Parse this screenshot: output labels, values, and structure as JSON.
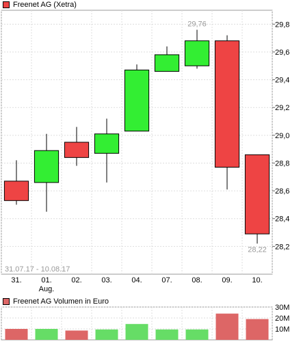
{
  "chart_data": [
    {
      "type": "candlestick",
      "title": "Freenet AG (Xetra)",
      "date_range_label": "31.07.17 - 10.08.17",
      "categories": [
        "31.",
        "01.",
        "02.",
        "03.",
        "04.",
        "07.",
        "08.",
        "09.",
        "10."
      ],
      "category_sublabels": [
        "",
        "Aug.",
        "",
        "",
        "",
        "",
        "",
        "",
        ""
      ],
      "ohlc": [
        {
          "open": 28.67,
          "high": 28.82,
          "low": 28.5,
          "close": 28.53
        },
        {
          "open": 28.66,
          "high": 29.01,
          "low": 28.45,
          "close": 28.89
        },
        {
          "open": 28.95,
          "high": 29.06,
          "low": 28.78,
          "close": 28.84
        },
        {
          "open": 28.87,
          "high": 29.12,
          "low": 28.66,
          "close": 29.01
        },
        {
          "open": 29.03,
          "high": 29.51,
          "low": 29.03,
          "close": 29.47
        },
        {
          "open": 29.46,
          "high": 29.64,
          "low": 29.46,
          "close": 29.58
        },
        {
          "open": 29.5,
          "high": 29.76,
          "low": 29.48,
          "close": 29.68
        },
        {
          "open": 29.68,
          "high": 29.72,
          "low": 28.61,
          "close": 28.77
        },
        {
          "open": 28.86,
          "high": 28.86,
          "low": 28.22,
          "close": 28.29
        }
      ],
      "high_label": "29,76",
      "low_label": "28,22",
      "ylim": [
        28.0,
        29.9
      ],
      "yticks": [
        "28,2",
        "28,4",
        "28,6",
        "28,8",
        "29,0",
        "29,2",
        "29,4",
        "29,6",
        "29,8"
      ],
      "ytick_values": [
        28.2,
        28.4,
        28.6,
        28.8,
        29.0,
        29.2,
        29.4,
        29.6,
        29.8
      ],
      "up_color": "#33ee33",
      "down_color": "#ee4444",
      "grid": true
    },
    {
      "type": "bar",
      "title": "Freenet AG Volumen in Euro",
      "categories": [
        "31.",
        "01.",
        "02.",
        "03.",
        "04.",
        "07.",
        "08.",
        "09.",
        "10."
      ],
      "values": [
        10,
        10,
        8.5,
        9.5,
        14.5,
        9.5,
        9.5,
        24,
        19
      ],
      "unit": "M",
      "ylim": [
        0,
        30
      ],
      "yticks": [
        "10M",
        "20M",
        "30M"
      ],
      "ytick_values": [
        10,
        20,
        30
      ],
      "up_color": "#66dd66",
      "down_color": "#dd6666",
      "grid": true
    }
  ]
}
